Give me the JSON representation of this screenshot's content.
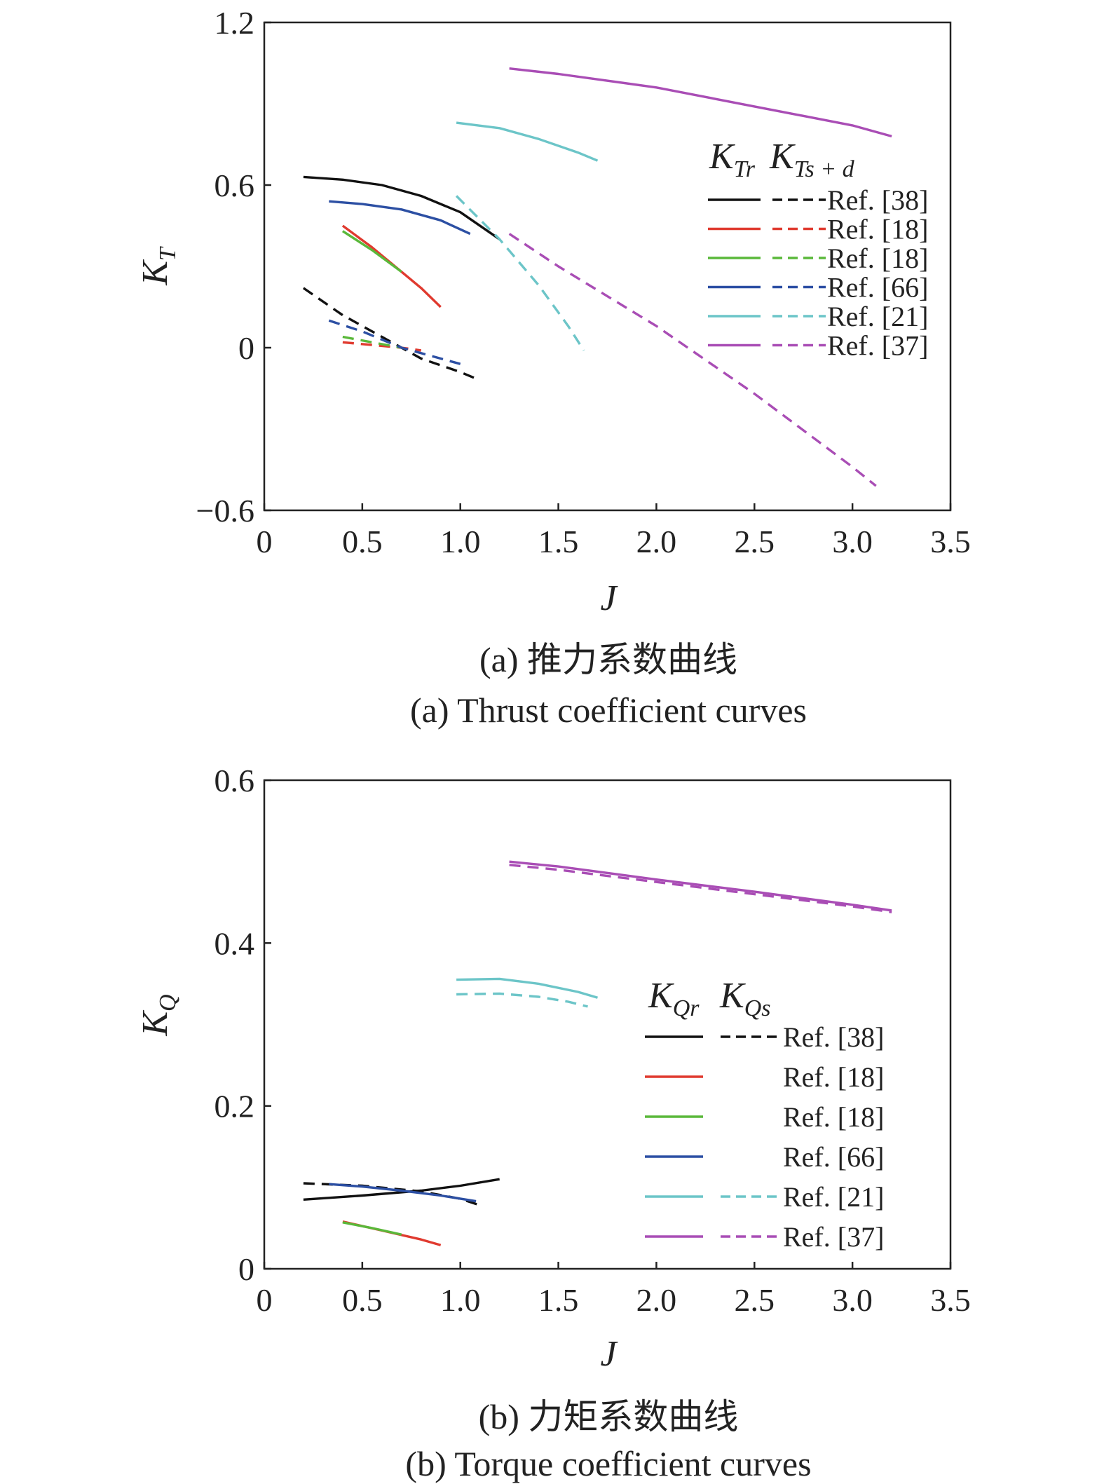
{
  "chart_data": [
    {
      "type": "line",
      "xlabel": "J",
      "ylabel": {
        "main": "K",
        "sub": "T"
      },
      "xlim": [
        0,
        3.5
      ],
      "ylim": [
        -0.6,
        1.2
      ],
      "xticks": [
        "0",
        "0.5",
        "1.0",
        "1.5",
        "2.0",
        "2.5",
        "3.0",
        "3.5"
      ],
      "yticks": [
        "−0.6",
        "0",
        "0.6",
        "1.2"
      ],
      "ytick_values": [
        -0.6,
        0,
        0.6,
        1.2
      ],
      "grid": false,
      "legend_position": "right",
      "legend_header": [
        {
          "main": "K",
          "sub": "Tr"
        },
        {
          "main": "K",
          "sub": "Ts + d"
        }
      ],
      "caption_cn": "(a) 推力系数曲线",
      "caption_en": "(a) Thrust coefficient curves",
      "legend": [
        {
          "label": "Ref. [38]",
          "color": "#111111",
          "solid": true,
          "dashed": true
        },
        {
          "label": "Ref. [18]",
          "color": "#e03a2f",
          "solid": true,
          "dashed": true
        },
        {
          "label": "Ref. [18]",
          "color": "#5ab83a",
          "solid": true,
          "dashed": true
        },
        {
          "label": "Ref. [66]",
          "color": "#2c4fa3",
          "solid": true,
          "dashed": true
        },
        {
          "label": "Ref. [21]",
          "color": "#6cc5c8",
          "solid": true,
          "dashed": true
        },
        {
          "label": "Ref. [37]",
          "color": "#a94db5",
          "solid": true,
          "dashed": true
        }
      ],
      "series": [
        {
          "ref": "Ref. [38]",
          "kind": "solid",
          "color": "#111111",
          "points": [
            [
              0.2,
              0.63
            ],
            [
              0.4,
              0.62
            ],
            [
              0.6,
              0.6
            ],
            [
              0.8,
              0.56
            ],
            [
              1.0,
              0.5
            ],
            [
              1.2,
              0.4
            ]
          ]
        },
        {
          "ref": "Ref. [38]",
          "kind": "dashed",
          "color": "#111111",
          "points": [
            [
              0.2,
              0.22
            ],
            [
              0.4,
              0.12
            ],
            [
              0.6,
              0.04
            ],
            [
              0.8,
              -0.04
            ],
            [
              1.0,
              -0.09
            ],
            [
              1.1,
              -0.12
            ]
          ]
        },
        {
          "ref": "Ref. [18]",
          "kind": "solid",
          "color": "#e03a2f",
          "points": [
            [
              0.4,
              0.45
            ],
            [
              0.55,
              0.37
            ],
            [
              0.7,
              0.28
            ],
            [
              0.8,
              0.22
            ],
            [
              0.9,
              0.15
            ]
          ]
        },
        {
          "ref": "Ref. [18]",
          "kind": "dashed",
          "color": "#e03a2f",
          "points": [
            [
              0.4,
              0.02
            ],
            [
              0.55,
              0.01
            ],
            [
              0.7,
              0.0
            ],
            [
              0.8,
              -0.01
            ]
          ]
        },
        {
          "ref": "Ref. [18]",
          "kind": "solid",
          "color": "#5ab83a",
          "points": [
            [
              0.4,
              0.43
            ],
            [
              0.55,
              0.36
            ],
            [
              0.7,
              0.28
            ]
          ]
        },
        {
          "ref": "Ref. [18]",
          "kind": "dashed",
          "color": "#5ab83a",
          "points": [
            [
              0.4,
              0.04
            ],
            [
              0.55,
              0.02
            ],
            [
              0.7,
              0.0
            ]
          ]
        },
        {
          "ref": "Ref. [66]",
          "kind": "solid",
          "color": "#2c4fa3",
          "points": [
            [
              0.33,
              0.54
            ],
            [
              0.5,
              0.53
            ],
            [
              0.7,
              0.51
            ],
            [
              0.9,
              0.47
            ],
            [
              1.05,
              0.42
            ]
          ]
        },
        {
          "ref": "Ref. [66]",
          "kind": "dashed",
          "color": "#2c4fa3",
          "points": [
            [
              0.33,
              0.1
            ],
            [
              0.5,
              0.06
            ],
            [
              0.7,
              0.0
            ],
            [
              0.9,
              -0.04
            ],
            [
              1.0,
              -0.06
            ]
          ]
        },
        {
          "ref": "Ref. [21]",
          "kind": "solid",
          "color": "#6cc5c8",
          "points": [
            [
              0.98,
              0.83
            ],
            [
              1.2,
              0.81
            ],
            [
              1.4,
              0.77
            ],
            [
              1.6,
              0.72
            ],
            [
              1.7,
              0.69
            ]
          ]
        },
        {
          "ref": "Ref. [21]",
          "kind": "dashed",
          "color": "#6cc5c8",
          "points": [
            [
              0.98,
              0.56
            ],
            [
              1.2,
              0.4
            ],
            [
              1.4,
              0.23
            ],
            [
              1.55,
              0.08
            ],
            [
              1.63,
              -0.01
            ]
          ]
        },
        {
          "ref": "Ref. [37]",
          "kind": "solid",
          "color": "#a94db5",
          "points": [
            [
              1.25,
              1.03
            ],
            [
              1.5,
              1.01
            ],
            [
              2.0,
              0.96
            ],
            [
              2.5,
              0.89
            ],
            [
              3.0,
              0.82
            ],
            [
              3.2,
              0.78
            ]
          ]
        },
        {
          "ref": "Ref. [37]",
          "kind": "dashed",
          "color": "#a94db5",
          "points": [
            [
              1.25,
              0.42
            ],
            [
              1.5,
              0.3
            ],
            [
              2.0,
              0.08
            ],
            [
              2.5,
              -0.17
            ],
            [
              3.0,
              -0.44
            ],
            [
              3.12,
              -0.51
            ]
          ]
        }
      ]
    },
    {
      "type": "line",
      "xlabel": "J",
      "ylabel": {
        "main": "K",
        "sub": "Q"
      },
      "xlim": [
        0,
        3.5
      ],
      "ylim": [
        0,
        0.6
      ],
      "xticks": [
        "0",
        "0.5",
        "1.0",
        "1.5",
        "2.0",
        "2.5",
        "3.0",
        "3.5"
      ],
      "yticks": [
        "0",
        "0.2",
        "0.4",
        "0.6"
      ],
      "ytick_values": [
        0,
        0.2,
        0.4,
        0.6
      ],
      "grid": false,
      "legend_position": "right",
      "legend_header": [
        {
          "main": "K",
          "sub": "Qr"
        },
        {
          "main": "K",
          "sub": "Qs"
        }
      ],
      "caption_cn": "(b) 力矩系数曲线",
      "caption_en": "(b) Torque coefficient curves",
      "legend": [
        {
          "label": "Ref. [38]",
          "color": "#111111",
          "solid": true,
          "dashed": true
        },
        {
          "label": "Ref. [18]",
          "color": "#e03a2f",
          "solid": true,
          "dashed": false
        },
        {
          "label": "Ref. [18]",
          "color": "#5ab83a",
          "solid": true,
          "dashed": false
        },
        {
          "label": "Ref. [66]",
          "color": "#2c4fa3",
          "solid": true,
          "dashed": false
        },
        {
          "label": "Ref. [21]",
          "color": "#6cc5c8",
          "solid": true,
          "dashed": true
        },
        {
          "label": "Ref. [37]",
          "color": "#a94db5",
          "solid": true,
          "dashed": true
        }
      ],
      "series": [
        {
          "ref": "Ref. [38]",
          "kind": "solid",
          "color": "#111111",
          "points": [
            [
              0.2,
              0.085
            ],
            [
              0.5,
              0.09
            ],
            [
              0.8,
              0.096
            ],
            [
              1.0,
              0.102
            ],
            [
              1.2,
              0.11
            ]
          ]
        },
        {
          "ref": "Ref. [38]",
          "kind": "dashed",
          "color": "#111111",
          "points": [
            [
              0.2,
              0.105
            ],
            [
              0.5,
              0.102
            ],
            [
              0.8,
              0.095
            ],
            [
              1.0,
              0.086
            ],
            [
              1.1,
              0.078
            ]
          ]
        },
        {
          "ref": "Ref. [18]",
          "kind": "solid",
          "color": "#e03a2f",
          "points": [
            [
              0.4,
              0.058
            ],
            [
              0.6,
              0.047
            ],
            [
              0.8,
              0.036
            ],
            [
              0.9,
              0.029
            ]
          ]
        },
        {
          "ref": "Ref. [18]",
          "kind": "solid",
          "color": "#5ab83a",
          "points": [
            [
              0.4,
              0.057
            ],
            [
              0.55,
              0.05
            ],
            [
              0.7,
              0.042
            ]
          ]
        },
        {
          "ref": "Ref. [66]",
          "kind": "solid",
          "color": "#2c4fa3",
          "points": [
            [
              0.33,
              0.104
            ],
            [
              0.5,
              0.101
            ],
            [
              0.7,
              0.096
            ],
            [
              0.9,
              0.09
            ],
            [
              1.08,
              0.083
            ]
          ]
        },
        {
          "ref": "Ref. [21]",
          "kind": "solid",
          "color": "#6cc5c8",
          "points": [
            [
              0.98,
              0.355
            ],
            [
              1.2,
              0.356
            ],
            [
              1.4,
              0.35
            ],
            [
              1.6,
              0.34
            ],
            [
              1.7,
              0.333
            ]
          ]
        },
        {
          "ref": "Ref. [21]",
          "kind": "dashed",
          "color": "#6cc5c8",
          "points": [
            [
              0.98,
              0.337
            ],
            [
              1.2,
              0.338
            ],
            [
              1.4,
              0.334
            ],
            [
              1.55,
              0.328
            ],
            [
              1.65,
              0.322
            ]
          ]
        },
        {
          "ref": "Ref. [37]",
          "kind": "solid",
          "color": "#a94db5",
          "points": [
            [
              1.25,
              0.5
            ],
            [
              1.5,
              0.494
            ],
            [
              2.0,
              0.478
            ],
            [
              2.5,
              0.463
            ],
            [
              3.0,
              0.447
            ],
            [
              3.2,
              0.44
            ]
          ]
        },
        {
          "ref": "Ref. [37]",
          "kind": "dashed",
          "color": "#a94db5",
          "points": [
            [
              1.25,
              0.496
            ],
            [
              1.5,
              0.49
            ],
            [
              2.0,
              0.475
            ],
            [
              2.5,
              0.46
            ],
            [
              3.0,
              0.445
            ],
            [
              3.2,
              0.438
            ]
          ]
        }
      ]
    }
  ]
}
